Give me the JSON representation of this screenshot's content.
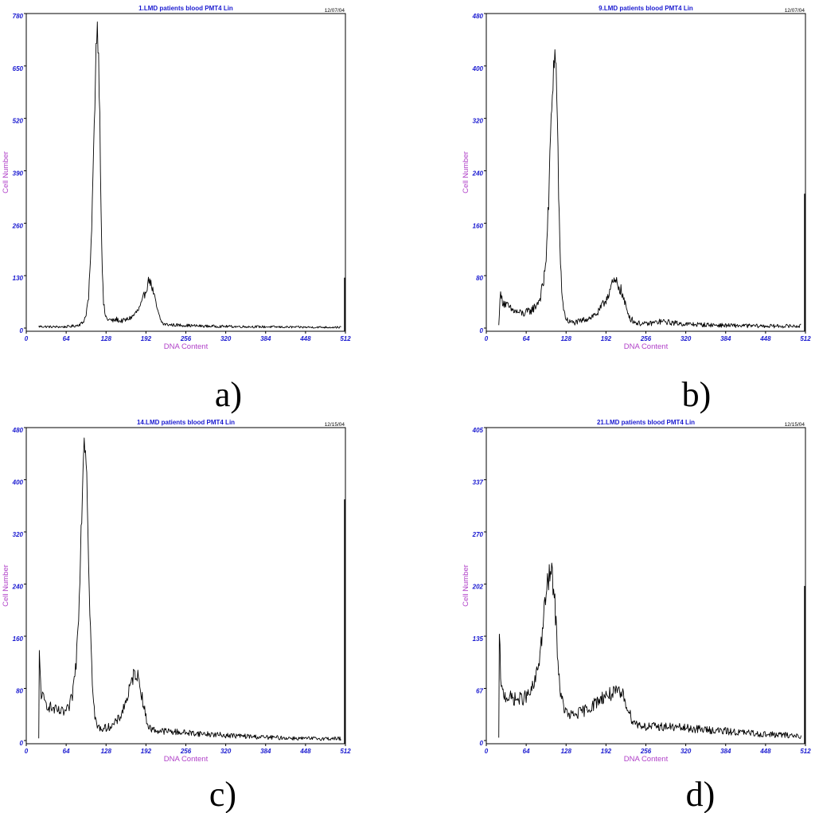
{
  "chart_data": [
    {
      "type": "line",
      "panel_label": "a)",
      "title": "1.LMD patients blood PMT4 Lin",
      "date": "12/07/04",
      "xlabel": "DNA Content",
      "ylabel": "Cell Number",
      "xlim": [
        0,
        512
      ],
      "ylim": [
        0,
        780
      ],
      "x_ticks": [
        "0",
        "64",
        "128",
        "192",
        "256",
        "320",
        "384",
        "448",
        "512"
      ],
      "y_ticks": [
        "0",
        "130",
        "260",
        "390",
        "520",
        "650",
        "780"
      ],
      "grid": false,
      "x": [
        20,
        40,
        60,
        70,
        80,
        90,
        95,
        100,
        104,
        108,
        112,
        114,
        116,
        118,
        120,
        122,
        124,
        127,
        130,
        135,
        140,
        145,
        150,
        160,
        170,
        180,
        185,
        190,
        195,
        198,
        200,
        202,
        205,
        208,
        212,
        216,
        220,
        230,
        250,
        280,
        320,
        384,
        448,
        505
      ],
      "y": [
        4,
        3,
        3,
        4,
        6,
        12,
        28,
        75,
        200,
        430,
        700,
        745,
        680,
        520,
        300,
        140,
        60,
        30,
        22,
        20,
        18,
        22,
        17,
        20,
        28,
        45,
        60,
        85,
        110,
        125,
        108,
        100,
        80,
        60,
        35,
        18,
        10,
        8,
        7,
        5,
        4,
        3,
        2,
        2
      ],
      "edge_spike": 125
    },
    {
      "type": "line",
      "panel_label": "b)",
      "title": "9.LMD patients blood PMT4 Lin",
      "date": "12/07/04",
      "xlabel": "DNA Content",
      "ylabel": "Cell Number",
      "xlim": [
        0,
        512
      ],
      "ylim": [
        0,
        480
      ],
      "x_ticks": [
        "0",
        "64",
        "128",
        "192",
        "256",
        "320",
        "384",
        "448",
        "512"
      ],
      "y_ticks": [
        "0",
        "80",
        "160",
        "240",
        "320",
        "400",
        "480"
      ],
      "grid": false,
      "x": [
        20,
        22,
        26,
        32,
        40,
        50,
        60,
        70,
        78,
        86,
        92,
        96,
        100,
        103,
        106,
        108,
        110,
        112,
        114,
        116,
        118,
        121,
        124,
        128,
        132,
        140,
        150,
        160,
        170,
        180,
        190,
        200,
        205,
        210,
        215,
        220,
        225,
        232,
        240,
        256,
        280,
        300,
        320,
        384,
        448,
        505
      ],
      "y": [
        3,
        50,
        42,
        35,
        28,
        24,
        22,
        26,
        32,
        45,
        70,
        110,
        190,
        290,
        360,
        400,
        415,
        395,
        320,
        210,
        120,
        60,
        28,
        14,
        10,
        8,
        10,
        14,
        18,
        24,
        40,
        62,
        70,
        68,
        60,
        45,
        28,
        14,
        8,
        6,
        10,
        8,
        6,
        4,
        3,
        3
      ],
      "edge_spike": 205
    },
    {
      "type": "line",
      "panel_label": "c)",
      "title": "14.LMD patients blood PMT4 Lin",
      "date": "12/15/04",
      "xlabel": "DNA Content",
      "ylabel": "Cell Number",
      "xlim": [
        0,
        512
      ],
      "ylim": [
        0,
        480
      ],
      "x_ticks": [
        "0",
        "64",
        "128",
        "192",
        "256",
        "320",
        "384",
        "448",
        "512"
      ],
      "y_ticks": [
        "0",
        "80",
        "160",
        "240",
        "320",
        "400",
        "480"
      ],
      "grid": false,
      "x": [
        20,
        21,
        24,
        30,
        40,
        50,
        60,
        68,
        74,
        80,
        84,
        88,
        91,
        93,
        95,
        97,
        99,
        101,
        104,
        107,
        110,
        114,
        120,
        130,
        140,
        150,
        160,
        168,
        172,
        176,
        180,
        184,
        188,
        192,
        196,
        200,
        210,
        230,
        256,
        290,
        320,
        384,
        448,
        505
      ],
      "y": [
        2,
        130,
        72,
        58,
        50,
        45,
        43,
        48,
        70,
        120,
        200,
        320,
        420,
        470,
        455,
        410,
        330,
        240,
        140,
        70,
        35,
        22,
        18,
        20,
        24,
        35,
        60,
        85,
        100,
        105,
        95,
        78,
        55,
        35,
        22,
        18,
        15,
        14,
        12,
        10,
        8,
        5,
        3,
        3
      ],
      "edge_spike": 370
    },
    {
      "type": "line",
      "panel_label": "d)",
      "title": "21.LMD patients blood PMT4 Lin",
      "date": "12/15/04",
      "xlabel": "DNA Content",
      "ylabel": "Cell Number",
      "xlim": [
        0,
        512
      ],
      "ylim": [
        0,
        405
      ],
      "x_ticks": [
        "0",
        "64",
        "128",
        "192",
        "256",
        "320",
        "384",
        "448",
        "512"
      ],
      "y_ticks": [
        "0",
        "67",
        "135",
        "202",
        "270",
        "337",
        "405"
      ],
      "grid": false,
      "x": [
        20,
        21,
        24,
        30,
        40,
        50,
        60,
        70,
        78,
        84,
        90,
        95,
        100,
        104,
        108,
        112,
        116,
        120,
        126,
        132,
        140,
        150,
        160,
        170,
        180,
        190,
        200,
        210,
        220,
        226,
        232,
        240,
        256,
        288,
        320,
        352,
        384,
        416,
        448,
        480,
        505
      ],
      "y": [
        2,
        135,
        65,
        58,
        55,
        53,
        55,
        60,
        75,
        100,
        140,
        185,
        210,
        218,
        200,
        150,
        90,
        55,
        40,
        32,
        33,
        36,
        40,
        45,
        52,
        58,
        60,
        62,
        58,
        45,
        30,
        22,
        18,
        18,
        16,
        14,
        12,
        10,
        8,
        7,
        6
      ],
      "edge_spike": 200
    }
  ]
}
